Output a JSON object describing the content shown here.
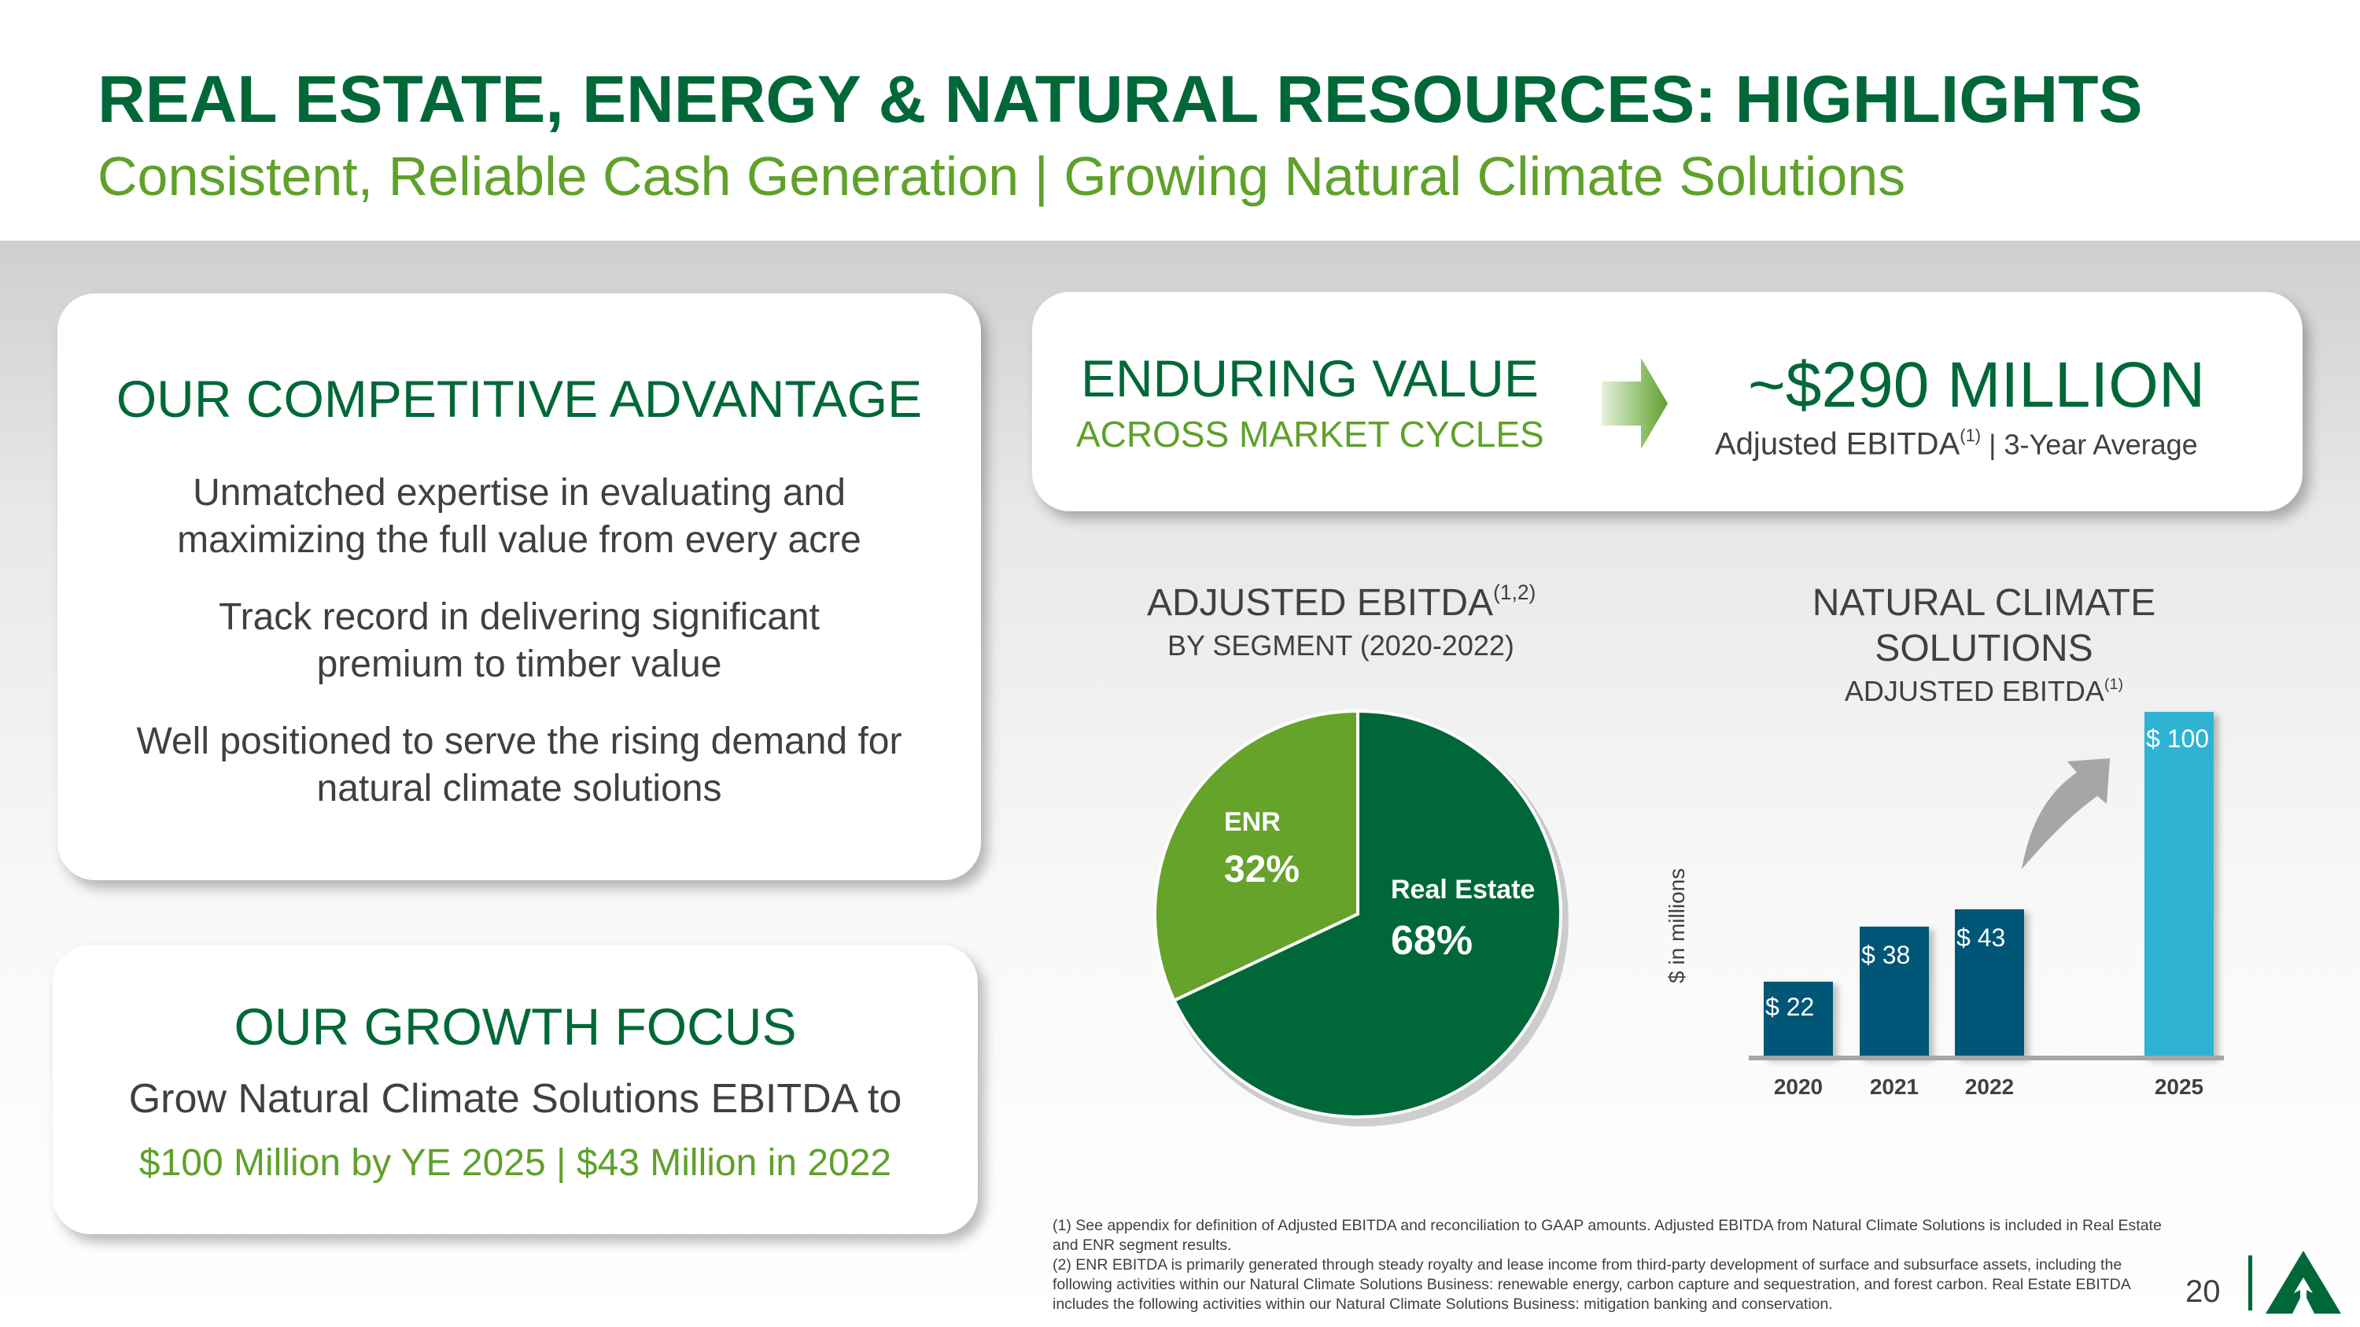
{
  "title": "REAL ESTATE, ENERGY & NATURAL RESOURCES: HIGHLIGHTS",
  "subtitle": "Consistent, Reliable Cash Generation | Growing Natural Climate Solutions",
  "advantage": {
    "heading": "OUR COMPETITIVE ADVANTAGE",
    "points": [
      "Unmatched expertise in evaluating and maximizing the full value from every acre",
      "Track record in delivering significant premium to timber value",
      "Well positioned to serve the rising demand for natural climate solutions"
    ]
  },
  "growth": {
    "heading": "OUR GROWTH FOCUS",
    "line1": "Grow Natural Climate Solutions EBITDA to",
    "line2": "$100 Million by YE 2025 | $43 Million in 2022"
  },
  "value": {
    "heading": "ENDURING VALUE",
    "sub": "ACROSS MARKET CYCLES",
    "amount": "~$290 MILLION",
    "amount_label": "Adjusted EBITDA",
    "amount_sup": "(1)",
    "amount_suffix": " | 3-Year Average"
  },
  "chart_data": [
    {
      "type": "pie",
      "title": "ADJUSTED EBITDA",
      "title_sup": "(1,2)",
      "subtitle": "BY SEGMENT (2020-2022)",
      "slices": [
        {
          "label": "Real Estate",
          "value": 68,
          "display": "68%",
          "color": "#006838"
        },
        {
          "label": "ENR",
          "value": 32,
          "display": "32%",
          "color": "#65a32a"
        }
      ]
    },
    {
      "type": "bar",
      "title": "NATURAL CLIMATE SOLUTIONS",
      "subtitle": "ADJUSTED EBITDA",
      "subtitle_sup": "(1)",
      "ylabel": "$ in millions",
      "ylim": [
        0,
        100
      ],
      "categories": [
        "2020",
        "2021",
        "2022",
        "2025"
      ],
      "values": [
        22,
        38,
        43,
        100
      ],
      "labels": [
        "$ 22",
        "$ 38",
        "$ 43",
        "$ 100"
      ],
      "colors": [
        "#005677",
        "#005677",
        "#005677",
        "#2fb3d3"
      ]
    }
  ],
  "footnotes": [
    "(1) See appendix for definition of Adjusted EBITDA and reconciliation to GAAP amounts. Adjusted EBITDA from Natural Climate Solutions is included in Real Estate and ENR segment results.",
    "(2) ENR EBITDA is primarily generated through steady royalty and lease income from third-party development of surface and subsurface assets, including the following activities within our Natural Climate Solutions Business: renewable energy, carbon capture and sequestration, and forest carbon. Real Estate EBITDA includes the following activities within our Natural Climate Solutions Business: mitigation banking and conservation."
  ],
  "page_number": "20"
}
